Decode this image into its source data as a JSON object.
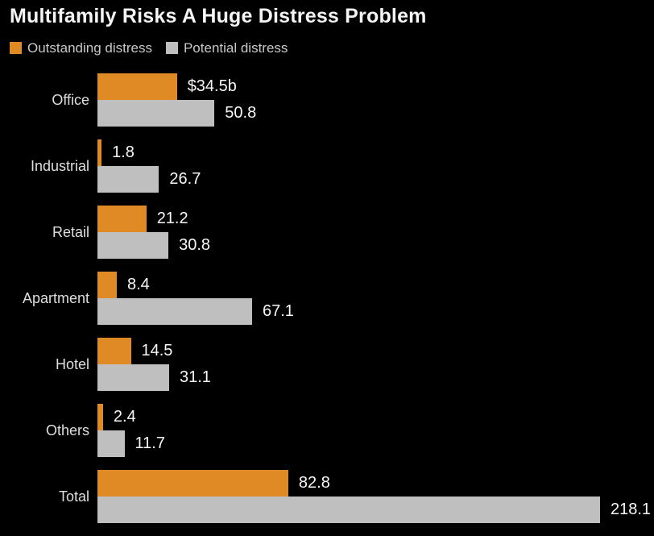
{
  "title": "Multifamily Risks A Huge Distress Problem",
  "colors": {
    "background": "#000000",
    "outstanding": "#e08a26",
    "potential": "#bfbfbf",
    "title_text": "#f5f5f5",
    "legend_text": "#c9c9c9",
    "category_text": "#dedede",
    "value_text": "#f7f7f7"
  },
  "legend": {
    "items": [
      {
        "label": "Outstanding distress",
        "color": "#e08a26"
      },
      {
        "label": "Potential distress",
        "color": "#bfbfbf"
      }
    ]
  },
  "chart_data": {
    "type": "bar",
    "orientation": "horizontal",
    "title": "Multifamily Risks A Huge Distress Problem",
    "xlabel": "",
    "ylabel": "",
    "xlim": [
      0,
      218.1
    ],
    "grid": false,
    "legend_position": "top-left",
    "categories": [
      "Office",
      "Industrial",
      "Retail",
      "Apartment",
      "Hotel",
      "Others",
      "Total"
    ],
    "series": [
      {
        "name": "Outstanding distress",
        "color": "#e08a26",
        "values": [
          34.5,
          1.8,
          21.2,
          8.4,
          14.5,
          2.4,
          82.8
        ],
        "labels": [
          "$34.5b",
          "1.8",
          "21.2",
          "8.4",
          "14.5",
          "2.4",
          "82.8"
        ]
      },
      {
        "name": "Potential distress",
        "color": "#bfbfbf",
        "values": [
          50.8,
          26.7,
          30.8,
          67.1,
          31.1,
          11.7,
          218.1
        ],
        "labels": [
          "50.8",
          "26.7",
          "30.8",
          "67.1",
          "31.1",
          "11.7",
          "218.1"
        ]
      }
    ]
  }
}
